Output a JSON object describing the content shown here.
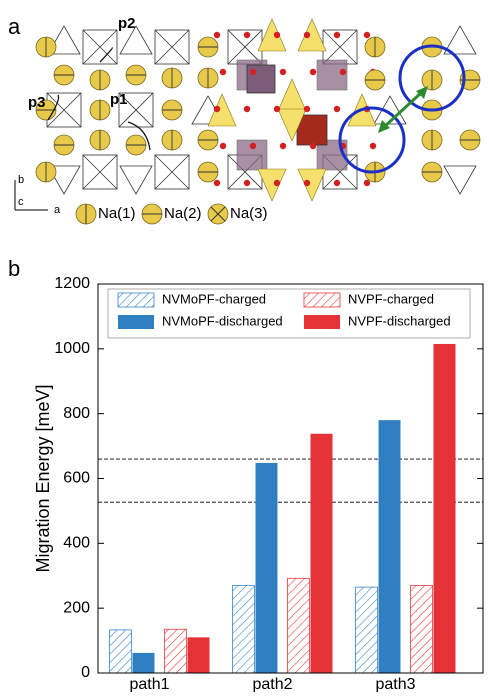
{
  "panel_a": {
    "label": "a",
    "paths": [
      "p1",
      "p2",
      "p3"
    ],
    "axes": [
      "b",
      "c",
      "a"
    ],
    "legend": [
      "Na(1)",
      "Na(2)",
      "Na(3)"
    ]
  },
  "chart_data": {
    "type": "bar",
    "label": "b",
    "ylabel": "Migration Energy [meV]",
    "categories": [
      "path1",
      "path2",
      "path3"
    ],
    "series": [
      {
        "name": "NVMoPF-charged",
        "color": "#3a86c8",
        "hatch": true,
        "values": [
          133,
          270,
          265
        ]
      },
      {
        "name": "NVMoPF-discharged",
        "color": "#2f7fc1",
        "hatch": false,
        "values": [
          62,
          648,
          780
        ]
      },
      {
        "name": "NVPF-charged",
        "color": "#e8383d",
        "hatch": true,
        "values": [
          135,
          292,
          270
        ]
      },
      {
        "name": "NVPF-discharged",
        "color": "#e53236",
        "hatch": false,
        "values": [
          110,
          738,
          1015
        ]
      }
    ],
    "reference_lines": [
      660,
      527
    ],
    "ylim": [
      0,
      1200
    ],
    "yticks": [
      0,
      200,
      400,
      600,
      800,
      1000,
      1200
    ]
  }
}
